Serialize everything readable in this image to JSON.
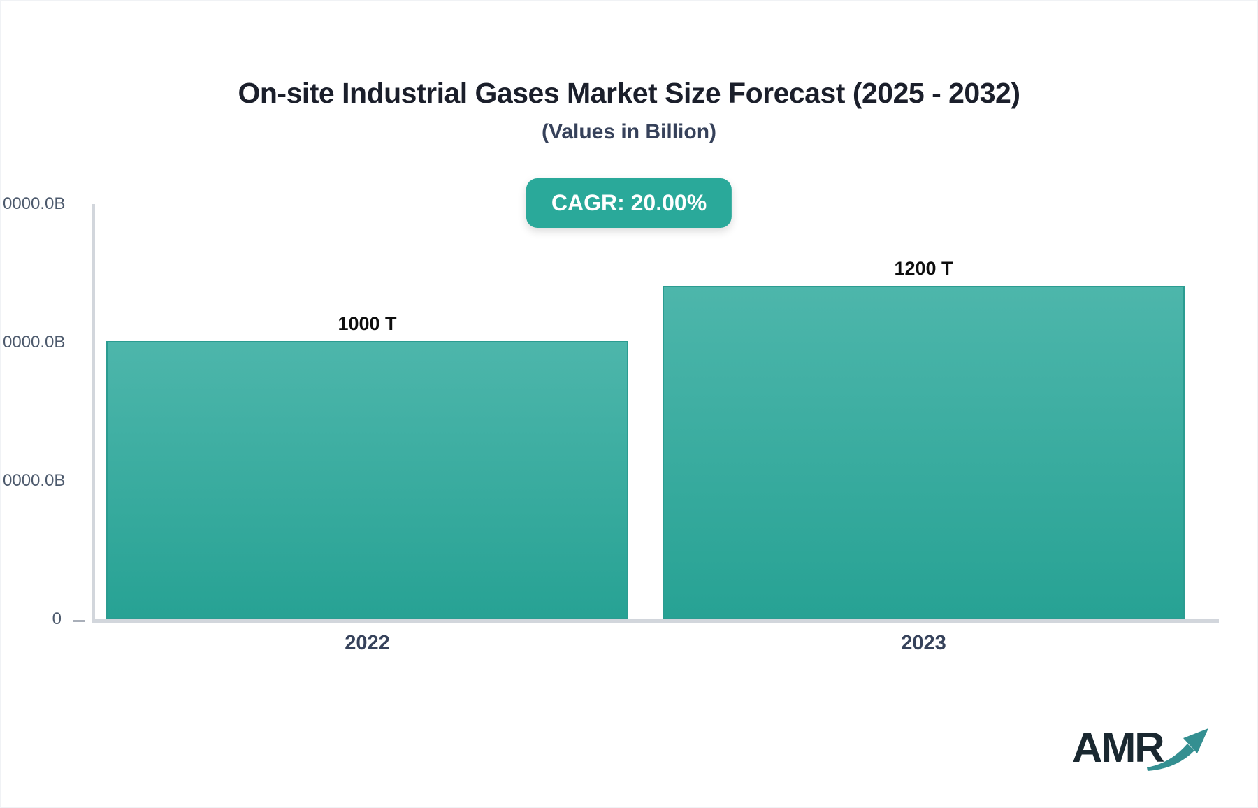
{
  "header": {
    "title": "On-site Industrial Gases Market Size Forecast (2025 - 2032)",
    "subtitle": "(Values in Billion)",
    "cagr_badge": "CAGR: 20.00%"
  },
  "colors": {
    "accent_teal": "#2aa99a",
    "bar_gradient_top": "#4db6ab",
    "bar_gradient_bottom": "#27a294",
    "bar_border": "#2b9c91",
    "axis_line": "#d2d6dc",
    "title_text": "#1b1f2b",
    "axis_label_text": "#4d5a6d",
    "value_label_text": "#0d0d0d"
  },
  "chart_data": {
    "type": "bar",
    "title": "On-site Industrial Gases Market Size Forecast (2025 - 2032)",
    "subtitle": "(Values in Billion)",
    "categories": [
      "2022",
      "2023"
    ],
    "values": [
      1000,
      1200
    ],
    "value_labels": [
      "1000 T",
      "1200 T"
    ],
    "xlabel": "",
    "ylabel": "",
    "y_axis_tick_labels": [
      "0000.0B",
      "0000.0B",
      "0000.0B",
      "0"
    ],
    "ylim": [
      0,
      1500
    ],
    "grid": false,
    "legend": false,
    "annotation": "CAGR: 20.00%"
  },
  "footer": {
    "logo_text": "AMR",
    "logo_arrow_icon": "growth-arrow-icon"
  }
}
